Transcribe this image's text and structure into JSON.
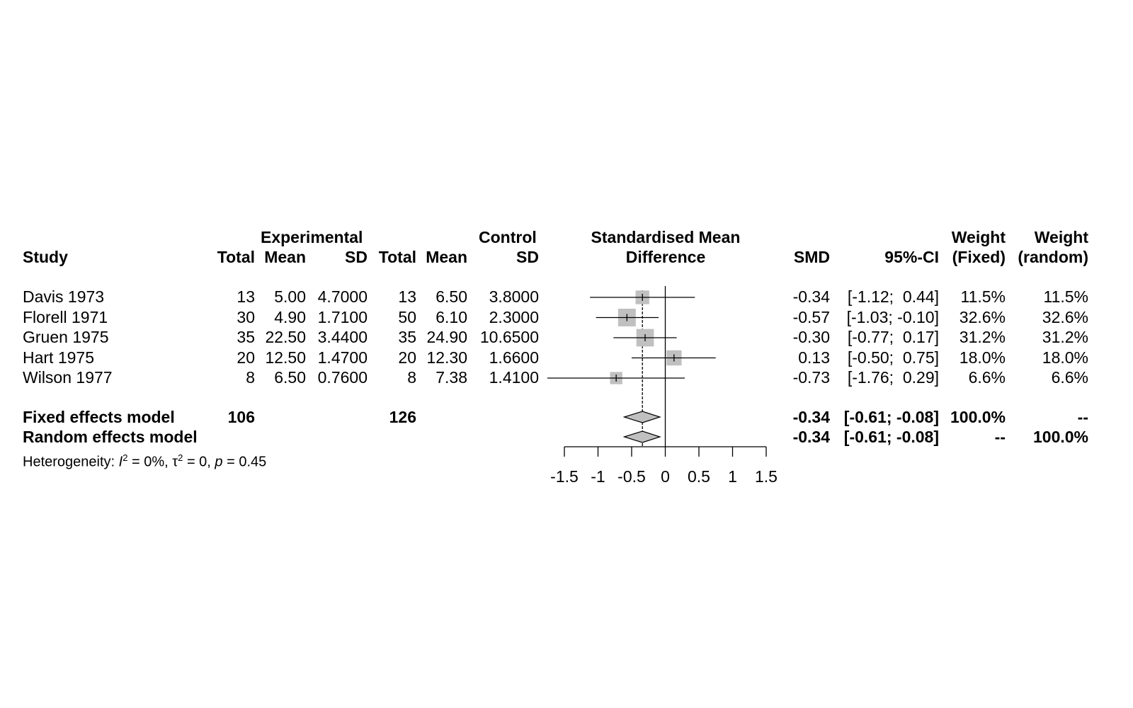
{
  "headers": {
    "study": "Study",
    "experimental": "Experimental",
    "control": "Control",
    "total": "Total",
    "mean": "Mean",
    "sd": "SD",
    "smd_line1": "Standardised Mean",
    "smd_line2": "Difference",
    "smd": "SMD",
    "ci": "95%-CI",
    "weight": "Weight",
    "fixed": "(Fixed)",
    "random": "(random)"
  },
  "studies": [
    {
      "name": "Davis 1973",
      "e_total": "13",
      "e_mean": "5.00",
      "e_sd": "4.7000",
      "c_total": "13",
      "c_mean": "6.50",
      "c_sd": "3.8000",
      "smd_text": "-0.34",
      "ci_text": "[-1.12;  0.44]",
      "w_fixed": "11.5%",
      "w_random": "11.5%"
    },
    {
      "name": "Florell 1971",
      "e_total": "30",
      "e_mean": "4.90",
      "e_sd": "1.7100",
      "c_total": "50",
      "c_mean": "6.10",
      "c_sd": "2.3000",
      "smd_text": "-0.57",
      "ci_text": "[-1.03; -0.10]",
      "w_fixed": "32.6%",
      "w_random": "32.6%"
    },
    {
      "name": "Gruen 1975",
      "e_total": "35",
      "e_mean": "22.50",
      "e_sd": "3.4400",
      "c_total": "35",
      "c_mean": "24.90",
      "c_sd": "10.6500",
      "smd_text": "-0.30",
      "ci_text": "[-0.77;  0.17]",
      "w_fixed": "31.2%",
      "w_random": "31.2%"
    },
    {
      "name": "Hart 1975",
      "e_total": "20",
      "e_mean": "12.50",
      "e_sd": "1.4700",
      "c_total": "20",
      "c_mean": "12.30",
      "c_sd": "1.6600",
      "smd_text": "0.13",
      "ci_text": "[-0.50;  0.75]",
      "w_fixed": "18.0%",
      "w_random": "18.0%"
    },
    {
      "name": "Wilson 1977",
      "e_total": "8",
      "e_mean": "6.50",
      "e_sd": "0.7600",
      "c_total": "8",
      "c_mean": "7.38",
      "c_sd": "1.4100",
      "smd_text": "-0.73",
      "ci_text": "[-1.76;  0.29]",
      "w_fixed": "6.6%",
      "w_random": "6.6%"
    }
  ],
  "fixed": {
    "label": "Fixed effects model",
    "e_total": "106",
    "c_total": "126",
    "smd_text": "-0.34",
    "ci_text": "[-0.61; -0.08]",
    "w_fixed": "100.0%",
    "w_random": "--"
  },
  "random": {
    "label": "Random effects model",
    "smd_text": "-0.34",
    "ci_text": "[-0.61; -0.08]",
    "w_fixed": "--",
    "w_random": "100.0%"
  },
  "heterogeneity": {
    "prefix": "Heterogeneity: ",
    "i2_sym": "I",
    "i2_val": " = 0%, ",
    "tau2_sym": "τ",
    "tau2_val": " = 0, ",
    "p_sym": "p",
    "p_val": " = 0.45",
    "sup": "2"
  },
  "chart_data": {
    "type": "forest",
    "xlim": [
      -1.5,
      1.5
    ],
    "ticks": [
      -1.5,
      -1,
      -0.5,
      0,
      0.5,
      1,
      1.5
    ],
    "tick_labels": [
      "-1.5",
      "-1",
      "-0.5",
      "0",
      "0.5",
      "1",
      "1.5"
    ],
    "studies": [
      {
        "smd": -0.34,
        "lo": -1.12,
        "hi": 0.44,
        "weight": 11.5
      },
      {
        "smd": -0.57,
        "lo": -1.03,
        "hi": -0.1,
        "weight": 32.6
      },
      {
        "smd": -0.3,
        "lo": -0.77,
        "hi": 0.17,
        "weight": 31.2
      },
      {
        "smd": 0.13,
        "lo": -0.5,
        "hi": 0.75,
        "weight": 18.0
      },
      {
        "smd": -0.73,
        "lo": -1.76,
        "hi": 0.29,
        "weight": 6.6
      }
    ],
    "fixed": {
      "smd": -0.34,
      "lo": -0.61,
      "hi": -0.08
    },
    "random": {
      "smd": -0.34,
      "lo": -0.61,
      "hi": -0.08
    },
    "null_line": 0,
    "colors": {
      "box": "#c0c0c0",
      "diamond": "#c0c0c0",
      "line": "#000000"
    }
  }
}
